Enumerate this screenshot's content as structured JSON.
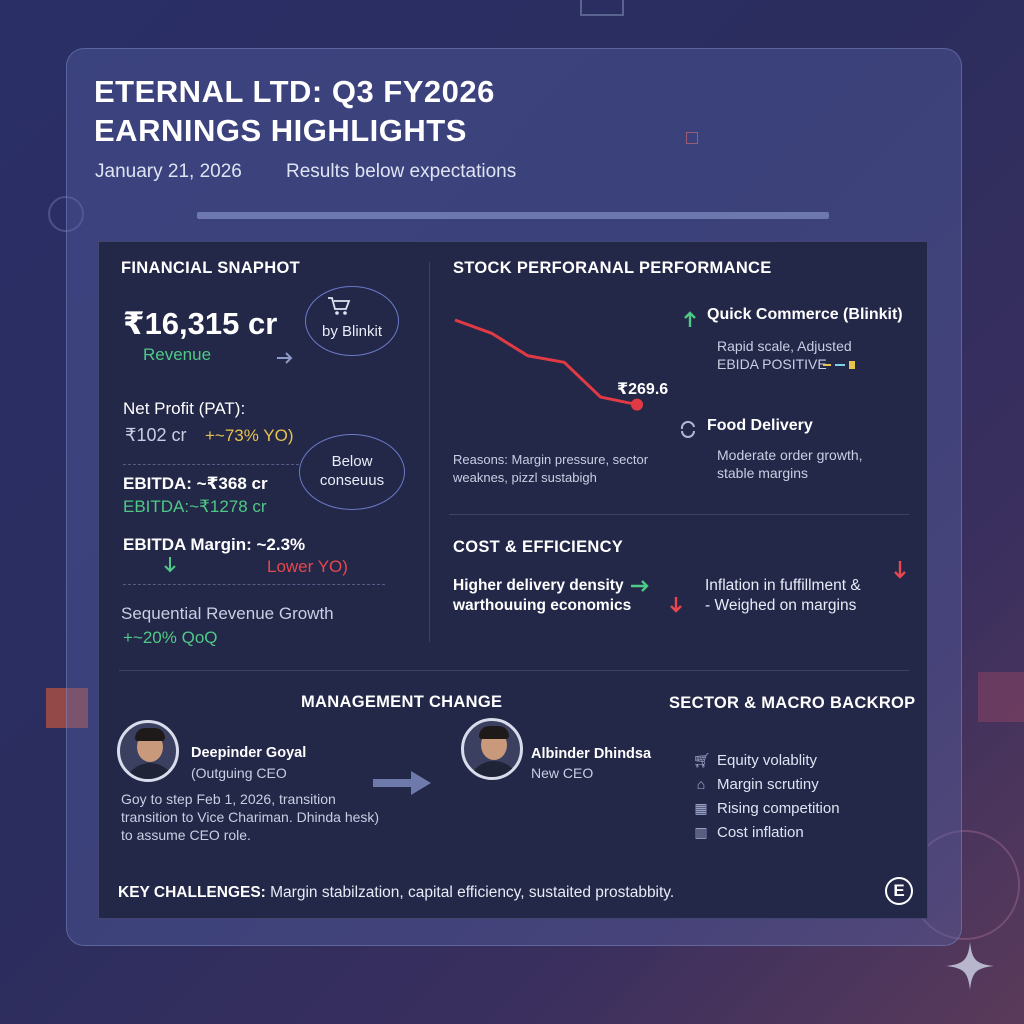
{
  "header": {
    "title_line1": "ETERNAL LTD: Q3 FY2026",
    "title_line2": "EARNINGS HIGHLIGHTS",
    "date": "January 21, 2026",
    "note": "Results below expectations"
  },
  "financial_snapshot": {
    "heading": "FINANCIAL SNAPHOT",
    "revenue_value": "₹16,315 cr",
    "revenue_label": "Revenue",
    "bubble_blinkit": "by Blinkit",
    "net_profit_label": "Net Profit (PAT):",
    "net_profit_value": "₹102 cr",
    "net_profit_change": "+~73% YO)",
    "bubble_consensus_line1": "Below",
    "bubble_consensus_line2": "conseuus",
    "ebitda_line1": "EBITDA: ~₹368 cr",
    "ebitda_line2": "EBITDA:~₹1278 cr",
    "ebitda_margin_label": "EBITDA Margin: ~2.3%",
    "ebitda_margin_note": "Lower YO)",
    "seq_growth_label": "Sequential Revenue Growth",
    "seq_growth_value": "+~20% QoQ"
  },
  "stock": {
    "heading": "STOCK PERFORANAL PERFORMANCE",
    "price_label": "₹269.6",
    "reasons_line1": "Reasons: Margin pressure, sector",
    "reasons_line2": "weaknes, pizzl sustabigh",
    "chart_data": {
      "type": "line",
      "series": [
        {
          "values": [
            1.0,
            0.86,
            0.62,
            0.55,
            0.18,
            0.1
          ]
        }
      ],
      "last_label": "₹269.6",
      "trend": "down"
    },
    "quick_commerce_title": "Quick Commerce (Blinkit)",
    "quick_commerce_line1": "Rapid scale, Adjusted",
    "quick_commerce_line2": "EBIDA POSITIVE",
    "food_delivery_title": "Food Delivery",
    "food_delivery_line1": "Moderate order growth,",
    "food_delivery_line2": "stable margins"
  },
  "cost": {
    "heading": "COST & EFFICIENCY",
    "left_line1": "Higher delivery density",
    "left_line2": "warthouuing economics",
    "right_line1": "Inflation in fuffillment &",
    "right_line2": "- Weighed on margins"
  },
  "management": {
    "heading": "MANAGEMENT CHANGE",
    "person1_name": "Deepinder Goyal",
    "person1_role": "(Outguing CEO",
    "person2_name": "Albinder Dhindsa",
    "person2_role": "New CEO",
    "transition_line1": "Goy to step Feb 1, 2026, transition",
    "transition_line2": "transition to Vice Chariman. Dhinda hesk)",
    "transition_line3": "to assume CEO role."
  },
  "sector": {
    "heading": "SECTOR & MACRO BACKROP",
    "items": [
      {
        "icon": "cart-icon",
        "label": "Equity volablity"
      },
      {
        "icon": "house-icon",
        "label": "Margin scrutiny"
      },
      {
        "icon": "building-icon",
        "label": "Rising competition"
      },
      {
        "icon": "bar-chart-icon",
        "label": "Cost inflation"
      }
    ]
  },
  "footer": {
    "challenges_label": "KEY CHALLENGES:",
    "challenges_text": " Margin stabilzation, capital efficiency, sustaited prostabbity.",
    "logo_letter": "E"
  },
  "colors": {
    "positive": "#4fc986",
    "negative": "#e5484d",
    "highlight": "#e7c34e",
    "panel": "#232748"
  }
}
